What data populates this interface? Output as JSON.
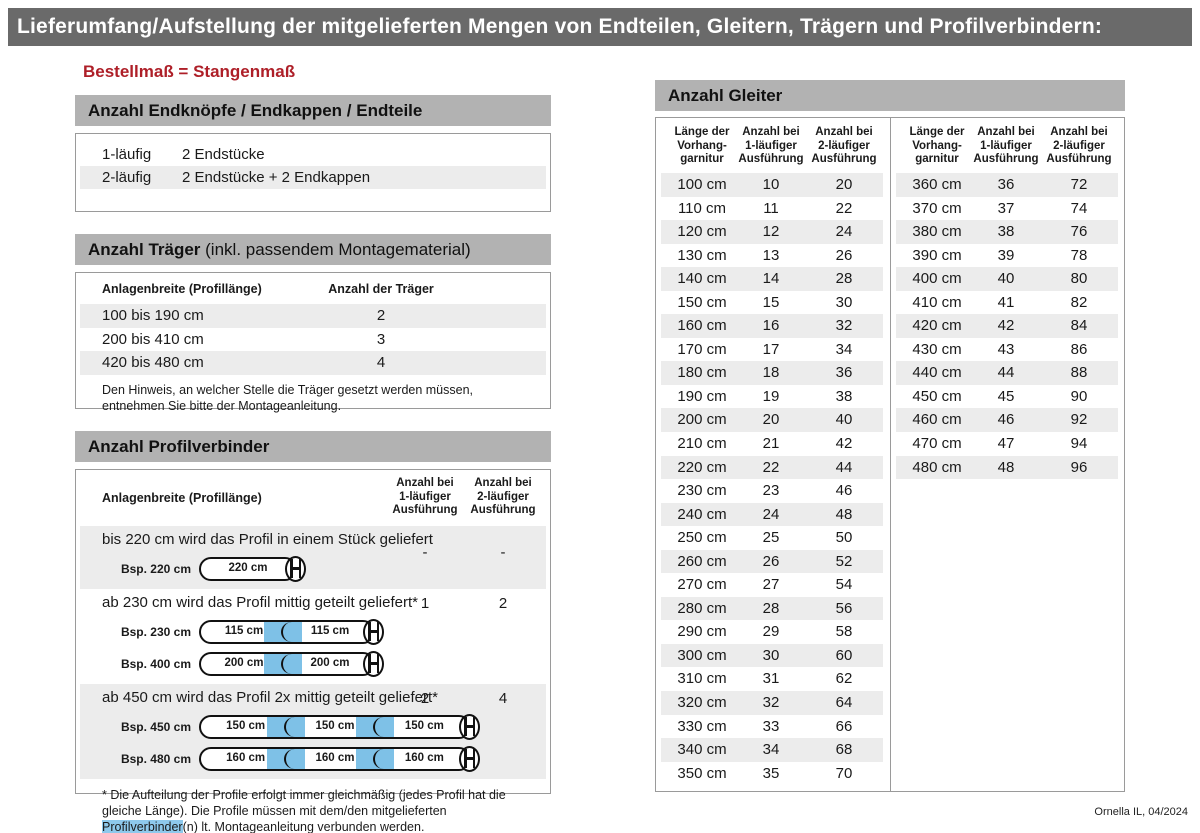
{
  "page": {
    "title": "Lieferumfang/Aufstellung der mitgelieferten Mengen von Endteilen, Gleitern, Trägern und Profilverbindern:",
    "subtitle": "Bestellmaß = Stangenmaß",
    "footer": "Ornella IL, 04/2024"
  },
  "colors": {
    "topbar_gray": "#6a6a6a",
    "section_bar_gray": "#b2b2b2",
    "stripe_gray": "#ececec",
    "accent_red": "#ae1f28",
    "connector_blue": "#7ec1e7",
    "highlight_blue": "#8ec9ec",
    "border_gray": "#9a9a9a"
  },
  "endteile": {
    "title": "Anzahl Endknöpfe / Endkappen / Endteile",
    "rows": [
      {
        "label": "1-läufig",
        "value": "2 Endstücke"
      },
      {
        "label": "2-läufig",
        "value": "2 Endstücke + 2 Endkappen"
      }
    ]
  },
  "traeger": {
    "title_bold": "Anzahl Träger",
    "title_rest": " (inkl. passendem Montagematerial)",
    "col1": "Anlagenbreite (Profillänge)",
    "col2": "Anzahl der Träger",
    "rows": [
      [
        "100 bis 190 cm",
        "2"
      ],
      [
        "200 bis 410 cm",
        "3"
      ],
      [
        "420 bis 480 cm",
        "4"
      ]
    ],
    "note": "Den Hinweis, an welcher Stelle die Träger gesetzt werden müssen, entnehmen Sie bitte der Montageanleitung."
  },
  "profilverbinder": {
    "title": "Anzahl Profilverbinder",
    "col1": "Anlagenbreite (Profillänge)",
    "col2_lines": [
      "Anzahl bei",
      "1-läufiger",
      "Ausführung"
    ],
    "col3_lines": [
      "Anzahl bei",
      "2-läufiger",
      "Ausführung"
    ],
    "rows": [
      {
        "text": "bis 220 cm wird das Profil in einem Stück geliefert",
        "v1": "-",
        "v2": "-",
        "diagrams": [
          {
            "label": "Bsp. 220 cm",
            "segments": [
              "220 cm"
            ]
          }
        ]
      },
      {
        "text": "ab 230 cm wird das Profil mittig geteilt geliefert*",
        "v1": "1",
        "v2": "2",
        "diagrams": [
          {
            "label": "Bsp. 230 cm",
            "segments": [
              "115 cm",
              "115 cm"
            ]
          },
          {
            "label": "Bsp. 400 cm",
            "segments": [
              "200 cm",
              "200 cm"
            ]
          }
        ]
      },
      {
        "text": "ab 450 cm wird das Profil 2x mittig geteilt geliefert*",
        "v1": "2",
        "v2": "4",
        "diagrams": [
          {
            "label": "Bsp. 450 cm",
            "segments": [
              "150 cm",
              "150 cm",
              "150 cm"
            ]
          },
          {
            "label": "Bsp. 480 cm",
            "segments": [
              "160 cm",
              "160 cm",
              "160 cm"
            ]
          }
        ]
      }
    ],
    "footnote_pre": "* Die Aufteilung der Profile erfolgt immer gleichmäßig (jedes Profil hat die gleiche Länge). Die Profile müssen mit dem/den mitgelieferten ",
    "footnote_highlight": "Profilverbinder",
    "footnote_post": "(n) lt. Montageanleitung verbunden werden."
  },
  "gleiter": {
    "title": "Anzahl Gleiter",
    "headers": [
      [
        "Länge der",
        "Vorhang-",
        "garnitur"
      ],
      [
        "Anzahl bei",
        "1-läufiger",
        "Ausführung"
      ],
      [
        "Anzahl bei",
        "2-läufiger",
        "Ausführung"
      ]
    ],
    "left_rows": [
      [
        "100 cm",
        "10",
        "20"
      ],
      [
        "110 cm",
        "11",
        "22"
      ],
      [
        "120 cm",
        "12",
        "24"
      ],
      [
        "130 cm",
        "13",
        "26"
      ],
      [
        "140 cm",
        "14",
        "28"
      ],
      [
        "150 cm",
        "15",
        "30"
      ],
      [
        "160 cm",
        "16",
        "32"
      ],
      [
        "170 cm",
        "17",
        "34"
      ],
      [
        "180 cm",
        "18",
        "36"
      ],
      [
        "190 cm",
        "19",
        "38"
      ],
      [
        "200 cm",
        "20",
        "40"
      ],
      [
        "210 cm",
        "21",
        "42"
      ],
      [
        "220 cm",
        "22",
        "44"
      ],
      [
        "230 cm",
        "23",
        "46"
      ],
      [
        "240 cm",
        "24",
        "48"
      ],
      [
        "250 cm",
        "25",
        "50"
      ],
      [
        "260 cm",
        "26",
        "52"
      ],
      [
        "270 cm",
        "27",
        "54"
      ],
      [
        "280 cm",
        "28",
        "56"
      ],
      [
        "290 cm",
        "29",
        "58"
      ],
      [
        "300 cm",
        "30",
        "60"
      ],
      [
        "310 cm",
        "31",
        "62"
      ],
      [
        "320 cm",
        "32",
        "64"
      ],
      [
        "330 cm",
        "33",
        "66"
      ],
      [
        "340 cm",
        "34",
        "68"
      ],
      [
        "350 cm",
        "35",
        "70"
      ]
    ],
    "right_rows": [
      [
        "360 cm",
        "36",
        "72"
      ],
      [
        "370 cm",
        "37",
        "74"
      ],
      [
        "380 cm",
        "38",
        "76"
      ],
      [
        "390 cm",
        "39",
        "78"
      ],
      [
        "400 cm",
        "40",
        "80"
      ],
      [
        "410 cm",
        "41",
        "82"
      ],
      [
        "420 cm",
        "42",
        "84"
      ],
      [
        "430 cm",
        "43",
        "86"
      ],
      [
        "440 cm",
        "44",
        "88"
      ],
      [
        "450 cm",
        "45",
        "90"
      ],
      [
        "460 cm",
        "46",
        "92"
      ],
      [
        "470 cm",
        "47",
        "94"
      ],
      [
        "480 cm",
        "48",
        "96"
      ]
    ]
  }
}
